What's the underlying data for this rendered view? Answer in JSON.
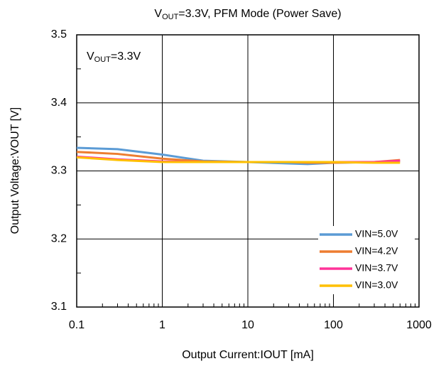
{
  "chart_data": {
    "type": "line",
    "title": [
      "V",
      "OUT",
      "=3.3V, PFM Mode (Power Save)"
    ],
    "annotation": [
      "V",
      "OUT",
      "=3.3V"
    ],
    "xlabel": "Output  Current:IOUT [mA]",
    "ylabel": "Output  Voltage:VOUT [V]",
    "xscale": "log",
    "x": [
      0.1,
      0.3,
      1,
      3,
      10,
      30,
      50,
      100,
      300,
      600
    ],
    "series": [
      {
        "name": "VIN=5.0V",
        "color": "#5b9bd5",
        "values": [
          3.334,
          3.332,
          3.324,
          3.315,
          3.313,
          3.311,
          3.31,
          3.312,
          3.313,
          3.314
        ]
      },
      {
        "name": "VIN=4.2V",
        "color": "#ed7d31",
        "values": [
          3.328,
          3.325,
          3.318,
          3.314,
          3.313,
          3.313,
          3.312,
          3.312,
          3.313,
          3.316
        ]
      },
      {
        "name": "VIN=3.7V",
        "color": "#ff3399",
        "values": [
          3.321,
          3.317,
          3.314,
          3.313,
          3.313,
          3.313,
          3.313,
          3.313,
          3.313,
          3.315
        ]
      },
      {
        "name": "VIN=3.0V",
        "color": "#ffc000",
        "values": [
          3.32,
          3.316,
          3.313,
          3.313,
          3.313,
          3.313,
          3.313,
          3.313,
          3.312,
          3.312
        ]
      }
    ],
    "xlim": [
      0.1,
      1000
    ],
    "xticks": [
      0.1,
      1,
      10,
      100,
      1000
    ],
    "ylim": [
      3.1,
      3.5
    ],
    "yticks": [
      3.1,
      3.2,
      3.3,
      3.4,
      3.5
    ],
    "grid": true,
    "legend": "lower right"
  }
}
